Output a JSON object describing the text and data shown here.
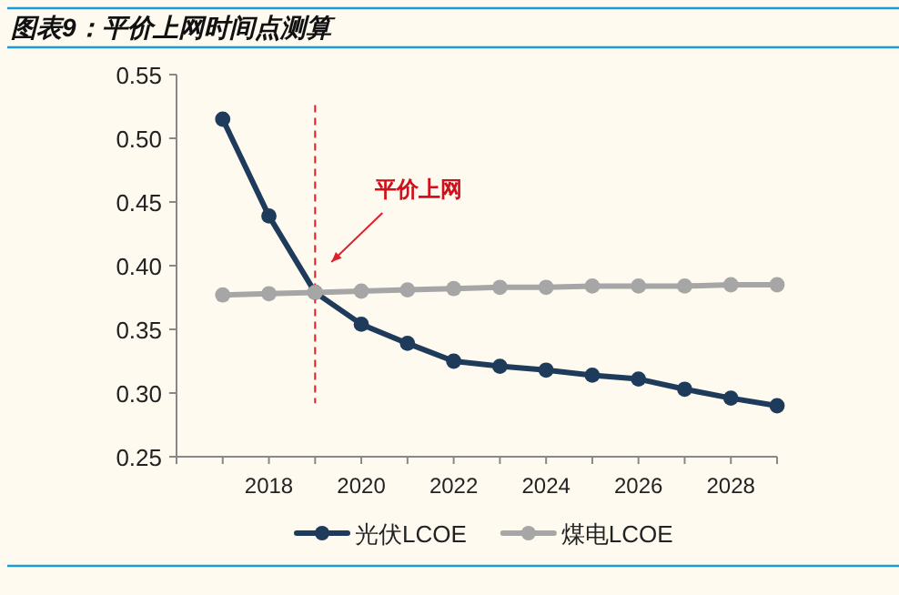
{
  "chart_data": {
    "type": "line",
    "title": "图表9：平价上网时间点测算",
    "x": [
      2017,
      2018,
      2019,
      2020,
      2021,
      2022,
      2023,
      2024,
      2025,
      2026,
      2027,
      2028,
      2029
    ],
    "series": [
      {
        "name": "光伏LCOE",
        "color": "#1f3b5c",
        "values": [
          0.515,
          0.439,
          0.379,
          0.354,
          0.339,
          0.325,
          0.321,
          0.318,
          0.314,
          0.311,
          0.303,
          0.296,
          0.29
        ]
      },
      {
        "name": "煤电LCOE",
        "color": "#a6a6a6",
        "values": [
          0.377,
          0.378,
          0.379,
          0.38,
          0.381,
          0.382,
          0.383,
          0.383,
          0.384,
          0.384,
          0.384,
          0.385,
          0.385
        ]
      }
    ],
    "xlim": [
      2016,
      2029
    ],
    "xticks": [
      {
        "value": 2016,
        "label": null
      },
      {
        "value": 2017,
        "label": null
      },
      2018,
      {
        "value": 2019,
        "label": null
      },
      2020,
      {
        "value": 2021,
        "label": null
      },
      2022,
      {
        "value": 2023,
        "label": null
      },
      2024,
      {
        "value": 2025,
        "label": null
      },
      2026,
      {
        "value": 2027,
        "label": null
      },
      2028,
      {
        "value": 2029,
        "label": null
      }
    ],
    "ylim": [
      0.25,
      0.55
    ],
    "yticks": [
      {
        "value": 0.25,
        "label": "0.25"
      },
      {
        "value": 0.3,
        "label": "0.30"
      },
      {
        "value": 0.35,
        "label": "0.35"
      },
      {
        "value": 0.4,
        "label": "0.40"
      },
      {
        "value": 0.45,
        "label": "0.45"
      },
      {
        "value": 0.5,
        "label": "0.50"
      },
      {
        "value": 0.55,
        "label": "0.55"
      }
    ],
    "ref_lines": [
      {
        "axis": "x",
        "value": 2019,
        "color": "#e0202a",
        "line_style": "dashed"
      }
    ],
    "annotations": [
      "平价上网"
    ],
    "marker": "circle",
    "line_style": "solid",
    "grid": false,
    "legend": "bottom"
  }
}
